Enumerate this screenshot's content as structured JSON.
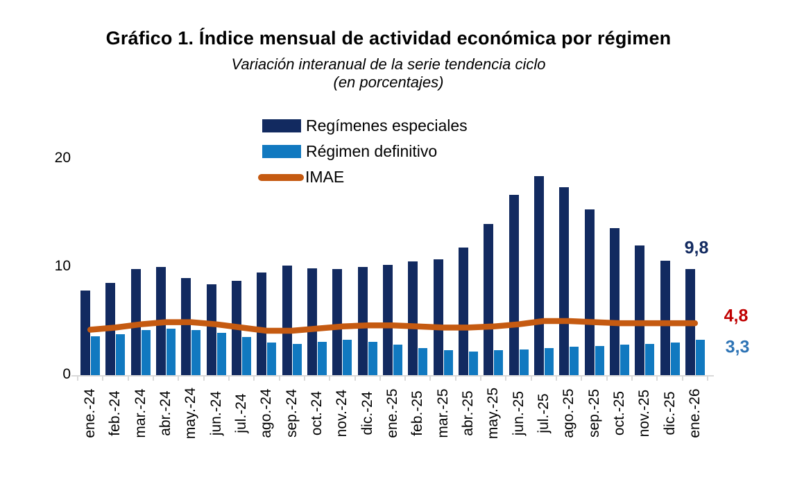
{
  "title": "Gráfico 1. Índice mensual de actividad económica por régimen",
  "subtitle_line1": "Variación interanual de la serie tendencia ciclo",
  "subtitle_line2": "(en porcentajes)",
  "chart_data": {
    "type": "bar+line",
    "title": "Gráfico 1. Índice mensual de actividad económica por régimen",
    "subtitle": "Variación interanual de la serie tendencia ciclo (en porcentajes)",
    "categories": [
      "ene.-24",
      "feb.-24",
      "mar.-24",
      "abr.-24",
      "may.-24",
      "jun.-24",
      "jul.-24",
      "ago.-24",
      "sep.-24",
      "oct.-24",
      "nov.-24",
      "dic.-24",
      "ene.-25",
      "feb.-25",
      "mar.-25",
      "abr.-25",
      "may.-25",
      "jun.-25",
      "jul.-25",
      "ago.-25",
      "sep.-25",
      "oct.-25",
      "nov.-25",
      "dic.-25",
      "ene.-26"
    ],
    "series": [
      {
        "name": "Regímenes especiales",
        "type": "bar",
        "color": "#122a60",
        "values": [
          7.8,
          8.5,
          9.8,
          10.0,
          9.0,
          8.4,
          8.7,
          9.5,
          10.1,
          9.9,
          9.8,
          10.0,
          10.2,
          10.5,
          10.7,
          11.8,
          14.0,
          16.7,
          18.4,
          17.4,
          15.3,
          13.6,
          12.0,
          10.6,
          9.8
        ]
      },
      {
        "name": "Régimen definitivo",
        "type": "bar",
        "color": "#1179c0",
        "values": [
          3.6,
          3.8,
          4.2,
          4.3,
          4.2,
          3.9,
          3.5,
          3.0,
          2.9,
          3.1,
          3.3,
          3.1,
          2.8,
          2.5,
          2.3,
          2.2,
          2.3,
          2.4,
          2.5,
          2.6,
          2.7,
          2.8,
          2.9,
          3.0,
          3.3
        ]
      },
      {
        "name": "IMAE",
        "type": "line",
        "color": "#c55a11",
        "values": [
          4.2,
          4.4,
          4.7,
          4.9,
          4.9,
          4.7,
          4.4,
          4.1,
          4.1,
          4.3,
          4.5,
          4.6,
          4.6,
          4.5,
          4.4,
          4.4,
          4.5,
          4.7,
          5.0,
          5.0,
          4.9,
          4.8,
          4.8,
          4.8,
          4.8
        ]
      }
    ],
    "ylim": [
      0,
      20
    ],
    "yticks": [
      "0",
      "10",
      "20"
    ],
    "grid": false,
    "legend_position": "top-center",
    "end_labels": [
      {
        "text": "9,8",
        "series": "Regímenes especiales",
        "color": "#122a60"
      },
      {
        "text": "4,8",
        "series": "IMAE",
        "color": "#c00000"
      },
      {
        "text": "3,3",
        "series": "Régimen definitivo",
        "color": "#2e74b5"
      }
    ]
  }
}
